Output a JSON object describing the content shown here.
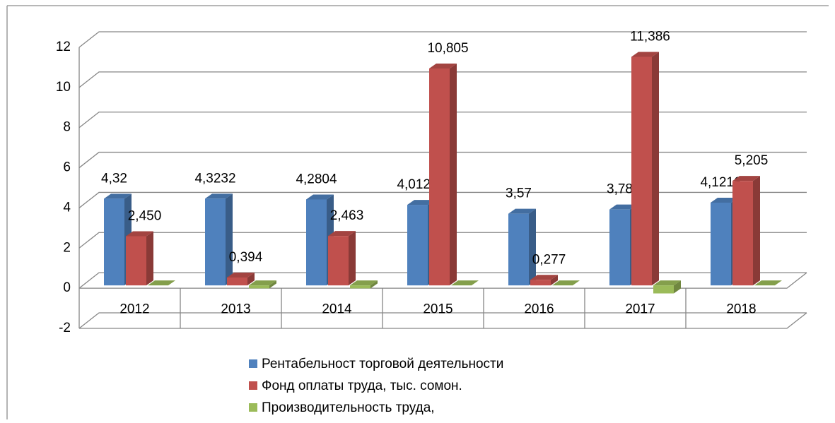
{
  "chart_data": {
    "type": "bar",
    "categories": [
      "2012",
      "2013",
      "2014",
      "2015",
      "2016",
      "2017",
      "2018"
    ],
    "series": [
      {
        "name": "Рентабельност торговой деятельности",
        "color": "#4f81bd",
        "values": [
          4.32,
          4.3232,
          4.2804,
          4.0128,
          3.57,
          3.78,
          4.1216
        ],
        "value_labels": [
          "4,32",
          "4,3232",
          "4,2804",
          "4,0128",
          "3,57",
          "3,78",
          "4,1216"
        ]
      },
      {
        "name": "Фонд оплаты труда, тыс. сомон.",
        "color": "#c0504d",
        "values": [
          2.45,
          0.394,
          2.463,
          10.805,
          0.277,
          11.386,
          5.205
        ],
        "value_labels": [
          "2,450",
          "0,394",
          "2,463",
          "10,805",
          "0,277",
          "11,386",
          "5,205"
        ]
      },
      {
        "name": "Производительность труда,",
        "color": "#9bbb59",
        "values": [
          0,
          -0.15,
          -0.15,
          0,
          0,
          -0.4,
          0
        ]
      }
    ],
    "ylim": [
      -2,
      12
    ],
    "yticks": [
      -2,
      0,
      2,
      4,
      6,
      8,
      10,
      12
    ],
    "grid": true,
    "legend": "bottom"
  }
}
